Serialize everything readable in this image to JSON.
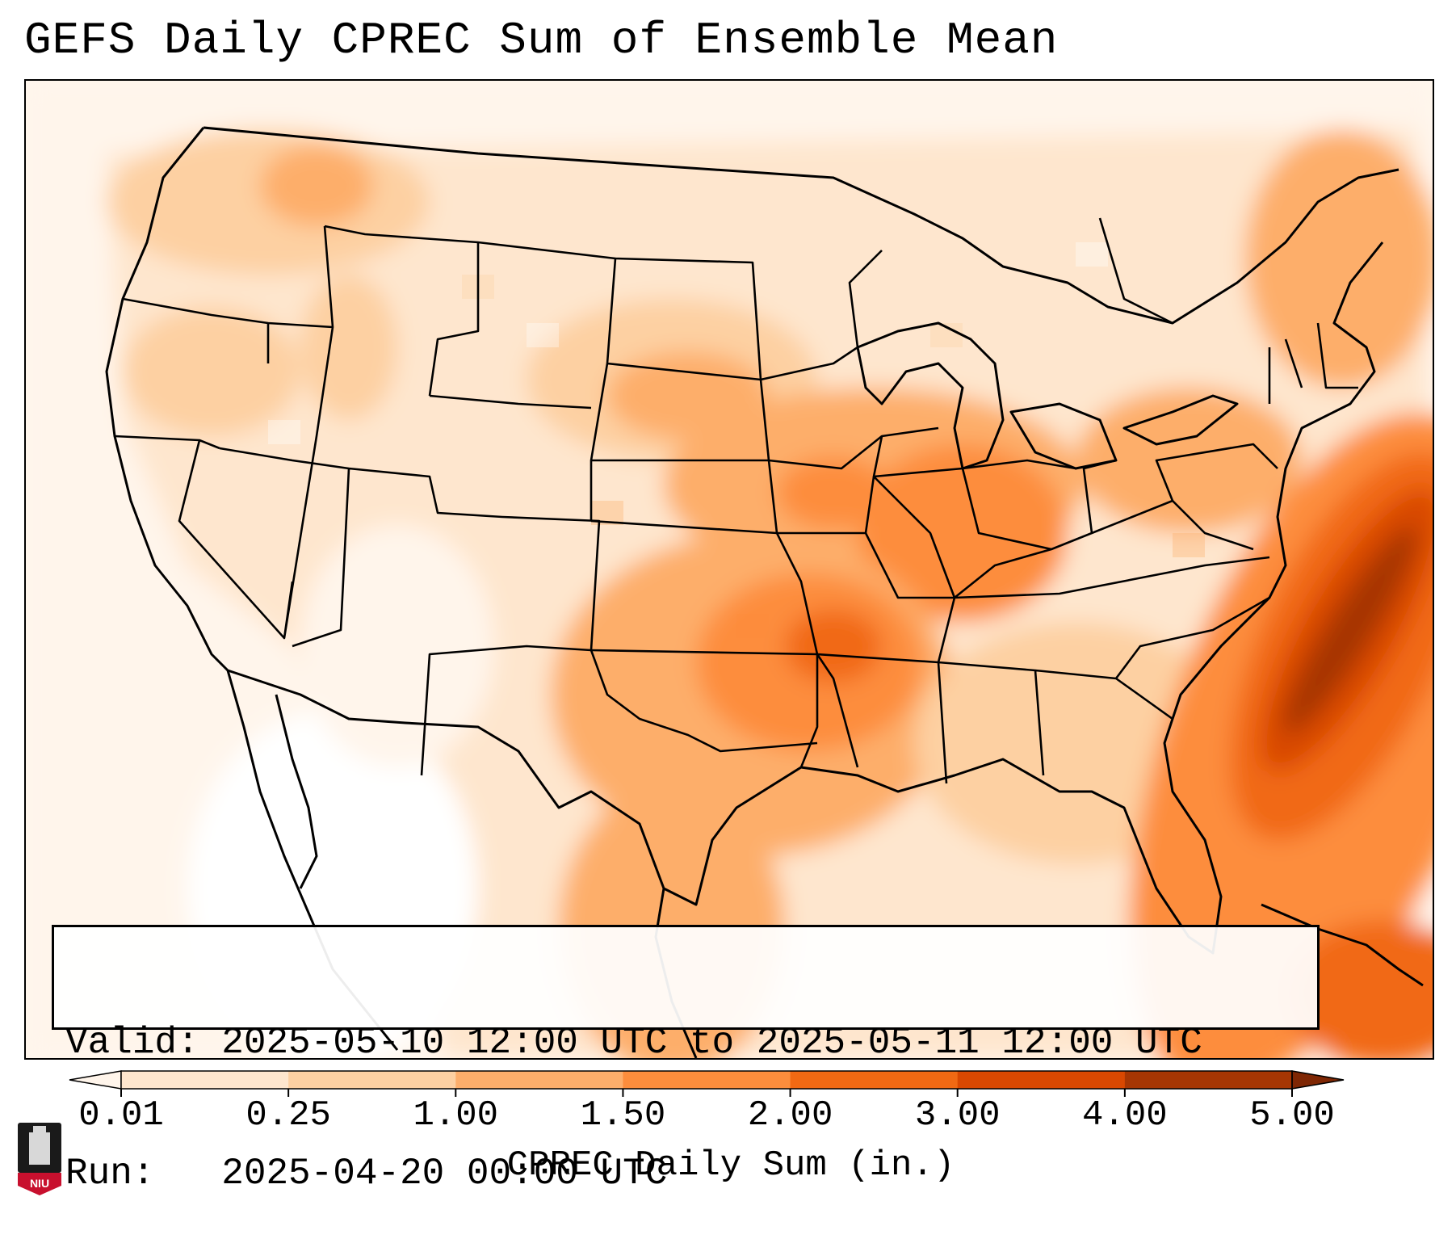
{
  "title": "GEFS Daily CPREC Sum of Ensemble Mean",
  "info": {
    "valid_line": "Valid: 2025-05-10 12:00 UTC to 2025-05-11 12:00 UTC",
    "run_line": "Run:   2025-04-20 00:00 UTC"
  },
  "colorbar": {
    "label": "CPREC Daily Sum (in.)",
    "levels": [
      "0.01",
      "0.25",
      "1.00",
      "1.50",
      "2.00",
      "3.00",
      "4.00",
      "5.00"
    ],
    "colors": [
      "#fff5eb",
      "#fee6ce",
      "#fdd0a2",
      "#fdae6b",
      "#fd8d3c",
      "#f16913",
      "#d94801",
      "#a63603",
      "#7f2704"
    ],
    "extend": "both"
  },
  "logo": {
    "text": "NIU",
    "colors": {
      "red": "#c8102e",
      "black": "#1a1a1a"
    }
  },
  "map": {
    "region": "Contiguous United States",
    "field": "CPREC daily sum",
    "colors": {
      "background": "#fff6ee",
      "boundary": "#000000"
    }
  }
}
